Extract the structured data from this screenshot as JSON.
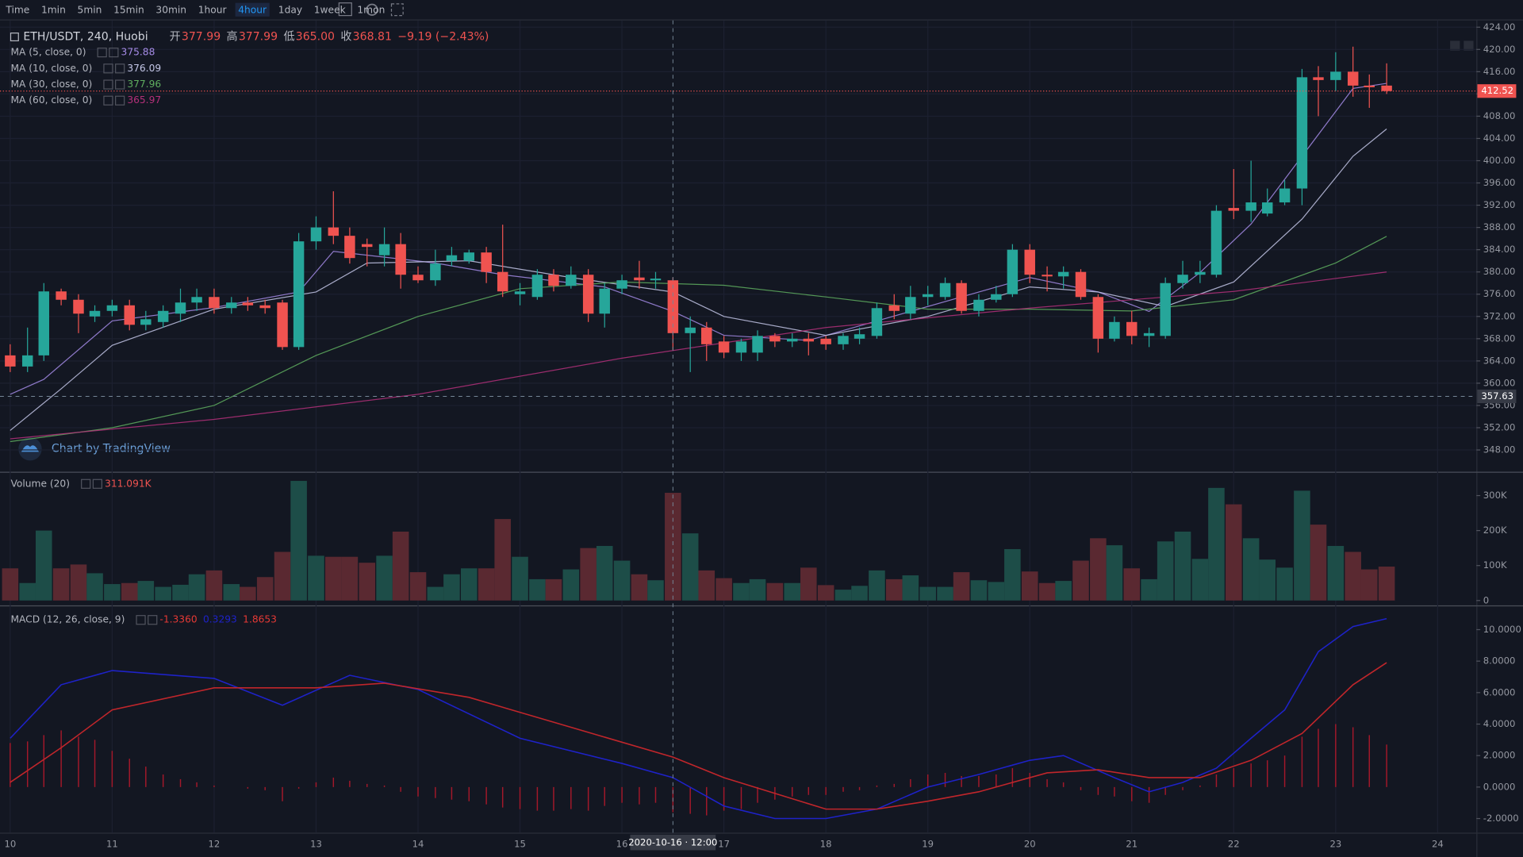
{
  "toolbar": {
    "intervals": [
      "Time",
      "1min",
      "5min",
      "15min",
      "30min",
      "1hour",
      "4hour",
      "1day",
      "1week",
      "1mon"
    ],
    "active": 6
  },
  "chart_data": [
    {
      "type": "candlestick",
      "title": "ETH/USDT, 240, Huobi",
      "ohlc_legend": [
        {
          "label": "开",
          "value": "377.99"
        },
        {
          "label": "高",
          "value": "377.99"
        },
        {
          "label": "低",
          "value": "365.00"
        },
        {
          "label": "收",
          "value": "368.81"
        }
      ],
      "change": "−9.19 (−2.43%)",
      "watermark": "Chart by TradingView",
      "x": [
        10,
        10.17,
        10.33,
        10.5,
        10.67,
        10.83,
        11,
        11.17,
        11.33,
        11.5,
        11.67,
        11.83,
        12,
        12.17,
        12.33,
        12.5,
        12.67,
        12.83,
        13,
        13.17,
        13.33,
        13.5,
        13.67,
        13.83,
        14,
        14.17,
        14.33,
        14.5,
        14.67,
        14.83,
        15,
        15.17,
        15.33,
        15.5,
        15.67,
        15.83,
        16,
        16.17,
        16.33,
        16.5,
        16.67,
        16.83,
        17,
        17.17,
        17.33,
        17.5,
        17.67,
        17.83,
        18,
        18.17,
        18.33,
        18.5,
        18.67,
        18.83,
        19,
        19.17,
        19.33,
        19.5,
        19.67,
        19.83,
        20,
        20.17,
        20.33,
        20.5,
        20.67,
        20.83,
        21,
        21.17,
        21.33,
        21.5,
        21.67,
        21.83,
        22,
        22.17,
        22.33,
        22.5,
        22.67,
        22.83,
        23,
        23.17,
        23.33,
        23.5
      ],
      "open": [
        365,
        363,
        365,
        376.5,
        375,
        372,
        373,
        374,
        370.5,
        371,
        372.5,
        374.5,
        375.5,
        373.5,
        374.5,
        374,
        374.5,
        366.5,
        385.5,
        388,
        386.5,
        385,
        383,
        385,
        379.5,
        378.5,
        382,
        382,
        383.5,
        380,
        376,
        375.5,
        379.5,
        377.5,
        379.5,
        372.5,
        377,
        379,
        378.5,
        378.5,
        369,
        370,
        367.5,
        365.5,
        365.5,
        368.5,
        367.5,
        368,
        368,
        367,
        368,
        368.5,
        374,
        372.5,
        375.5,
        375.5,
        378,
        373,
        375,
        376,
        384,
        379.5,
        379.2,
        380,
        375.5,
        368,
        371,
        368.5,
        368.5,
        378,
        379.5,
        379.5,
        391.5,
        391,
        390.5,
        392.5,
        395,
        415,
        414.5,
        416,
        413.5,
        413.5
      ],
      "high": [
        367,
        370,
        378,
        377,
        376,
        374,
        375,
        375,
        373,
        374,
        377,
        377,
        377,
        375.5,
        375.5,
        375,
        375,
        387,
        390,
        394.5,
        388,
        386,
        388,
        387,
        381,
        384,
        384.5,
        384,
        384.5,
        388.5,
        378,
        380.5,
        380.5,
        381,
        380.5,
        378,
        379.5,
        382,
        380,
        379,
        372,
        371,
        368.5,
        368,
        369.5,
        369,
        369,
        369,
        368.5,
        369,
        370,
        374.5,
        376,
        377.5,
        377.5,
        379,
        378.5,
        376,
        377.5,
        385,
        385,
        381,
        381,
        380.5,
        376,
        372,
        373,
        370,
        379,
        382,
        382,
        392,
        398.5,
        400,
        395,
        396.5,
        416.5,
        417,
        419.5,
        420.5,
        415.5,
        417.5
      ],
      "low": [
        362,
        362,
        364,
        374,
        369,
        371,
        372,
        369.5,
        369.5,
        370,
        371,
        373,
        372.5,
        372.5,
        373,
        372.5,
        366,
        366,
        384,
        385,
        381.5,
        381,
        381,
        377,
        378,
        377.5,
        381,
        381.5,
        378,
        375.5,
        374,
        375,
        376.5,
        377,
        371,
        370,
        376,
        377,
        377,
        366,
        362,
        364,
        364.5,
        364,
        364,
        366.5,
        366.5,
        365,
        366,
        366,
        367,
        368,
        371.5,
        371.5,
        374,
        375,
        372.5,
        372,
        374.5,
        375.5,
        378,
        376.5,
        377,
        375,
        365.5,
        367.5,
        367,
        366.5,
        368,
        377,
        378,
        379,
        389.5,
        389,
        390,
        392,
        392,
        408,
        412.5,
        411.5,
        409.5,
        412
      ],
      "close": [
        363,
        365,
        376.5,
        375,
        372.5,
        373,
        374,
        370.5,
        371.5,
        373,
        374.5,
        375.5,
        373.5,
        374.5,
        374,
        373.5,
        366.5,
        385.5,
        388,
        386.5,
        382.5,
        384.5,
        385,
        379.5,
        378.5,
        381.5,
        383,
        383.5,
        380,
        376.5,
        376.5,
        379.5,
        377.5,
        379.5,
        372.5,
        377,
        378.5,
        378.5,
        378.8,
        369,
        370,
        367,
        365.5,
        367.5,
        368.5,
        367.5,
        368,
        367.5,
        367,
        368.5,
        368.8,
        373.5,
        373,
        375.5,
        376,
        378,
        373,
        375,
        376,
        384,
        379.5,
        379.2,
        380,
        375.5,
        368,
        371,
        368.5,
        369,
        378,
        379.5,
        380,
        391,
        391,
        392.5,
        392.5,
        395,
        415,
        414.5,
        416,
        413.5,
        413.2,
        412.52
      ],
      "up_color": "#26a69a",
      "down_color": "#ef5350",
      "series": [
        {
          "name": "MA (5, close, 0)",
          "legend_value": "375.88",
          "color": "#a58be6",
          "x": [
            10,
            10.33,
            11,
            12,
            12.83,
            13.17,
            14.17,
            14.83,
            15.83,
            16.5,
            17,
            17.83,
            18.5,
            19.33,
            20,
            20.67,
            21.17,
            21.67,
            22.17,
            22.67,
            23.17,
            23.5
          ],
          "values": [
            358,
            360.7,
            371.2,
            373.6,
            376.4,
            383.7,
            381.6,
            379.5,
            377.3,
            372.9,
            368.6,
            367.7,
            371.2,
            375.5,
            379,
            376.4,
            372.9,
            379.9,
            388.6,
            400.8,
            413,
            413.9
          ]
        },
        {
          "name": "MA (10, close, 0)",
          "legend_value": "376.09",
          "color": "#c3c6e6",
          "x": [
            10,
            10.5,
            11,
            12,
            13,
            13.5,
            14.5,
            15.5,
            16.5,
            17,
            18,
            19,
            20,
            20.67,
            21.33,
            22,
            22.67,
            23.17,
            23.5
          ],
          "values": [
            351.5,
            359,
            366.8,
            373.3,
            376.4,
            381.6,
            382,
            379,
            376.4,
            372,
            368.6,
            372,
            377.3,
            376.4,
            373.8,
            378.2,
            389.5,
            400.8,
            405.7
          ]
        },
        {
          "name": "MA (30, close, 0)",
          "legend_value": "377.96",
          "color": "#5fae5f",
          "x": [
            10,
            11,
            12,
            13,
            14,
            15,
            16,
            17,
            18,
            19,
            20,
            21,
            22,
            23,
            23.5
          ],
          "values": [
            349.5,
            352,
            356,
            365,
            372,
            377,
            378.2,
            377.6,
            375.5,
            373.3,
            373.3,
            373,
            375,
            381.6,
            386.4
          ]
        },
        {
          "name": "MA (60, close, 0)",
          "legend_value": "365.97",
          "color": "#b4307a",
          "x": [
            10,
            12,
            14,
            16,
            18,
            20,
            22,
            23.5
          ],
          "values": [
            350,
            353.5,
            358,
            364.5,
            370,
            373.5,
            376.5,
            380
          ]
        }
      ],
      "xlim": [
        9.9,
        24.38
      ],
      "xticks": [
        10,
        11,
        12,
        13,
        14,
        15,
        16,
        17,
        18,
        19,
        20,
        21,
        22,
        23,
        24
      ],
      "ylim": [
        344.17,
        425.22
      ],
      "yticks": [
        {
          "value": 348,
          "label": "348.00"
        },
        {
          "value": 352,
          "label": "352.00"
        },
        {
          "value": 356,
          "label": "356.00"
        },
        {
          "value": 360,
          "label": "360.00"
        },
        {
          "value": 364,
          "label": "364.00"
        },
        {
          "value": 368,
          "label": "368.00"
        },
        {
          "value": 372,
          "label": "372.00"
        },
        {
          "value": 376,
          "label": "376.00"
        },
        {
          "value": 380,
          "label": "380.00"
        },
        {
          "value": 384,
          "label": "384.00"
        },
        {
          "value": 388,
          "label": "388.00"
        },
        {
          "value": 392,
          "label": "392.00"
        },
        {
          "value": 396,
          "label": "396.00"
        },
        {
          "value": 400,
          "label": "400.00"
        },
        {
          "value": 404,
          "label": "404.00"
        },
        {
          "value": 408,
          "label": "408.00"
        },
        {
          "value": 412,
          "label": "412.00"
        },
        {
          "value": 416,
          "label": "416.00"
        },
        {
          "value": 420,
          "label": "420.00"
        },
        {
          "value": 424,
          "label": "424.00"
        }
      ],
      "grid": true,
      "last_price": 412.52,
      "crosshair": {
        "x": 16.5,
        "x_label": "2020-10-16 · 12:00",
        "y": 357.63
      }
    },
    {
      "type": "bar",
      "title": "Volume (20)",
      "legend_value": "311.091K",
      "values": [
        92,
        50,
        200,
        92,
        103,
        78,
        47,
        50,
        56,
        39,
        45,
        75,
        86,
        47,
        39,
        67,
        139,
        342,
        128,
        125,
        125,
        108,
        128,
        197,
        81,
        39,
        75,
        92,
        92,
        233,
        125,
        61,
        61,
        89,
        150,
        156,
        114,
        75,
        58,
        308,
        192,
        86,
        64,
        50,
        61,
        50,
        50,
        94,
        44,
        31,
        42,
        86,
        61,
        72,
        39,
        39,
        81,
        58,
        53,
        147,
        83,
        50,
        56,
        114,
        178,
        158,
        92,
        61,
        169,
        197,
        119,
        322,
        275,
        178,
        117,
        94,
        314,
        217,
        156,
        139,
        89,
        97
      ],
      "up_color": "#1d4d48",
      "down_color": "#5a2931",
      "ylim": [
        -11,
        364
      ],
      "yticks": [
        0,
        {
          "value": 100,
          "label": "100K"
        },
        {
          "value": 200,
          "label": "200K"
        },
        {
          "value": 300,
          "label": "300K"
        }
      ]
    },
    {
      "type": "macd",
      "title": "MACD (12, 26, close, 9)",
      "legend_values": [
        {
          "label": "-1.3360",
          "color": "#e53935"
        },
        {
          "label": "0.3293",
          "color": "#1e22c8"
        },
        {
          "label": "1.8653",
          "color": "#e53935"
        }
      ],
      "histogram": [
        2.8,
        2.9,
        3.3,
        3.6,
        3.2,
        3.0,
        2.3,
        1.8,
        1.3,
        0.8,
        0.5,
        0.3,
        0.1,
        0,
        -0.1,
        -0.2,
        -0.9,
        -0.1,
        0.3,
        0.6,
        0.4,
        0.2,
        0.1,
        -0.3,
        -0.6,
        -0.7,
        -0.8,
        -0.9,
        -1.1,
        -1.3,
        -1.4,
        -1.5,
        -1.5,
        -1.4,
        -1.5,
        -1.2,
        -1.0,
        -1.1,
        -1.0,
        -1.6,
        -1.7,
        -1.8,
        -1.5,
        -1.4,
        -1.0,
        -0.8,
        -0.6,
        -0.5,
        -0.5,
        -0.3,
        -0.2,
        0.1,
        0.2,
        0.5,
        0.8,
        0.9,
        0.7,
        0.7,
        0.8,
        1.2,
        0.9,
        0.5,
        0.3,
        -0.2,
        -0.5,
        -0.6,
        -0.9,
        -1.0,
        -0.5,
        -0.2,
        0.1,
        0.8,
        1.2,
        1.5,
        1.7,
        2.0,
        3.2,
        3.7,
        4.0,
        3.8,
        3.3,
        2.7
      ],
      "histogram_color": "#a3182a",
      "series": [
        {
          "color": "#1e22c8",
          "x": [
            10,
            10.5,
            11,
            12,
            12.67,
            13.33,
            14,
            15,
            16,
            16.5,
            17,
            17.5,
            18,
            18.5,
            19,
            19.5,
            20,
            20.33,
            20.83,
            21.17,
            21.5,
            21.83,
            22.17,
            22.5,
            22.83,
            23.17,
            23.5
          ],
          "values": [
            3.1,
            6.5,
            7.4,
            6.9,
            5.2,
            7.1,
            6.2,
            3.1,
            1.5,
            0.6,
            -1.2,
            -2,
            -2,
            -1.4,
            0,
            0.8,
            1.7,
            2,
            0.6,
            -0.3,
            0.3,
            1.2,
            3.1,
            4.9,
            8.6,
            10.2,
            10.7
          ]
        },
        {
          "color": "#c0262b",
          "x": [
            10,
            10.5,
            11,
            12,
            13,
            13.67,
            14.5,
            15.5,
            16.5,
            17,
            18,
            18.5,
            19,
            19.5,
            20.17,
            20.67,
            21.17,
            21.67,
            22.17,
            22.67,
            23.17,
            23.5
          ],
          "values": [
            0.3,
            2.5,
            4.9,
            6.3,
            6.3,
            6.6,
            5.7,
            3.8,
            1.9,
            0.6,
            -1.4,
            -1.4,
            -0.9,
            -0.3,
            0.9,
            1.1,
            0.6,
            0.6,
            1.7,
            3.4,
            6.5,
            7.9
          ]
        }
      ],
      "ylim": [
        -2.9,
        11.42
      ],
      "yticks": [
        {
          "value": -2,
          "label": "-2.0000"
        },
        {
          "value": 0,
          "label": "0.0000"
        },
        {
          "value": 2,
          "label": "2.0000"
        },
        {
          "value": 4,
          "label": "4.0000"
        },
        {
          "value": 6,
          "label": "6.0000"
        },
        {
          "value": 8,
          "label": "8.0000"
        },
        {
          "value": 10,
          "label": "10.0000"
        }
      ]
    }
  ]
}
